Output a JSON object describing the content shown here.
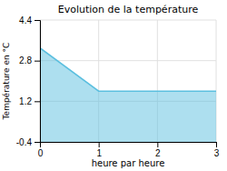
{
  "chart_data": {
    "type": "area",
    "title": "Evolution de la température",
    "xlabel": "heure par heure",
    "ylabel": "Température en °C",
    "x": [
      0,
      1,
      3
    ],
    "values": [
      3.3,
      1.6,
      1.6
    ],
    "color": "#5bbfdf",
    "xlim": [
      0,
      3
    ],
    "ylim": [
      -0.4,
      4.4
    ],
    "xticks": [
      0,
      1,
      2,
      3
    ],
    "yticks": [
      -0.4,
      1.2,
      2.8,
      4.4
    ],
    "grid": true
  }
}
